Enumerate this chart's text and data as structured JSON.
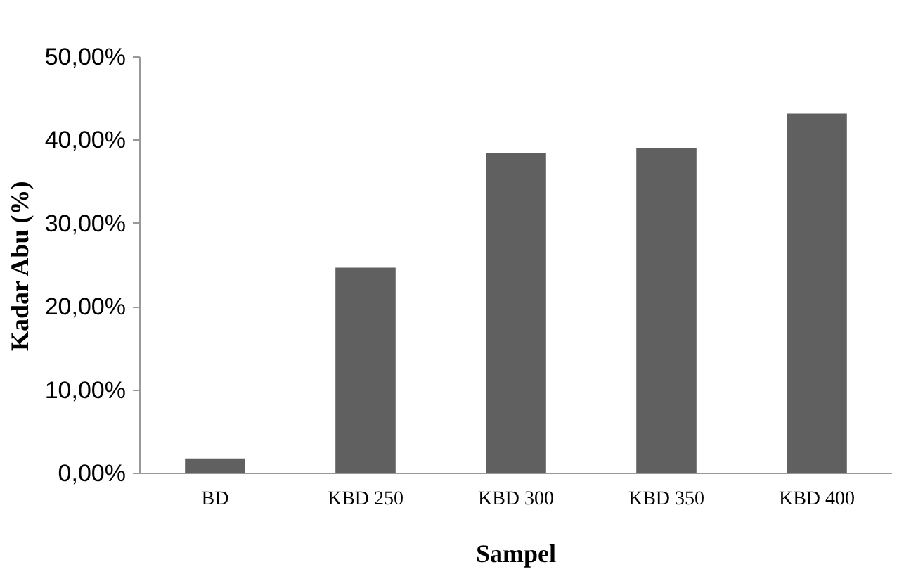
{
  "chart_data": {
    "type": "bar",
    "xlabel": "Sampel",
    "ylabel": "Kadar Abu (%)",
    "categories": [
      "BD",
      "KBD 250",
      "KBD 300",
      "KBD 350",
      "KBD 400"
    ],
    "values": [
      1.8,
      24.7,
      38.5,
      39.1,
      43.2
    ],
    "color": "#606060",
    "ylim": [
      0,
      50
    ],
    "yticks": [
      {
        "value": 0,
        "label": "0,00%"
      },
      {
        "value": 10,
        "label": "10,00%"
      },
      {
        "value": 20,
        "label": "20,00%"
      },
      {
        "value": 30,
        "label": "30,00%"
      },
      {
        "value": 40,
        "label": "40,00%"
      },
      {
        "value": 50,
        "label": "50,00%"
      }
    ],
    "grid": false
  }
}
